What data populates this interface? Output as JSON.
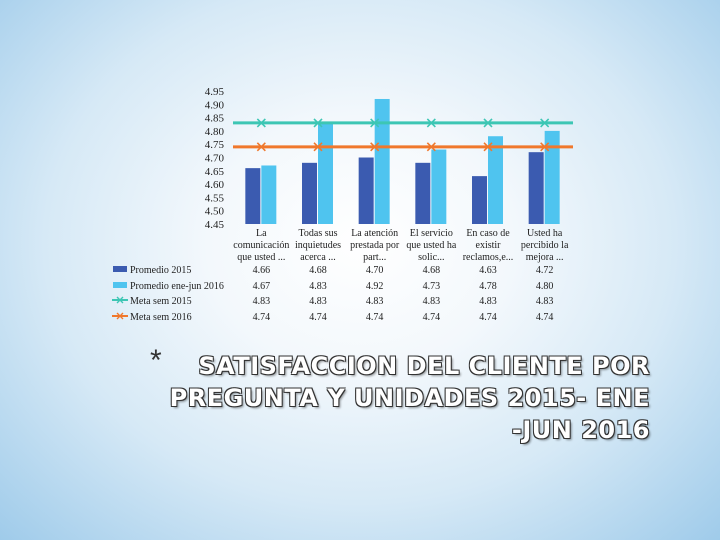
{
  "chart_data": {
    "type": "bar",
    "title": "SATISFACCION DEL CLIENTE POR PREGUNTA Y UNIDADES 2015- ENE -JUN 2016",
    "ylim": [
      4.45,
      4.95
    ],
    "yticks": [
      "4.95",
      "4.90",
      "4.85",
      "4.80",
      "4.75",
      "4.70",
      "4.65",
      "4.60",
      "4.55",
      "4.50",
      "4.45"
    ],
    "categories": [
      [
        "La",
        "comunicación",
        "que usted ..."
      ],
      [
        "Todas sus",
        "inquietudes",
        "acerca ..."
      ],
      [
        "La atención",
        "prestada por",
        "part..."
      ],
      [
        "El servicio",
        "que usted ha",
        "solic..."
      ],
      [
        "En caso de",
        "existir",
        "reclamos,e..."
      ],
      [
        "Usted ha",
        "percibido la",
        "mejora ..."
      ]
    ],
    "series": [
      {
        "name": "Promedio 2015",
        "kind": "bar",
        "color": "#3b5bb0",
        "values": [
          4.66,
          4.68,
          4.7,
          4.68,
          4.63,
          4.72
        ],
        "labels": [
          "4.66",
          "4.68",
          "4.70",
          "4.68",
          "4.63",
          "4.72"
        ]
      },
      {
        "name": "Promedio ene-jun 2016",
        "kind": "bar",
        "color": "#4fc4ef",
        "values": [
          4.67,
          4.83,
          4.92,
          4.73,
          4.78,
          4.8
        ],
        "labels": [
          "4.67",
          "4.83",
          "4.92",
          "4.73",
          "4.78",
          "4.80"
        ]
      },
      {
        "name": "Meta sem 2015",
        "kind": "line",
        "color": "#3dc6b4",
        "marker": "x",
        "values": [
          4.83,
          4.83,
          4.83,
          4.83,
          4.83,
          4.83
        ],
        "labels": [
          "4.83",
          "4.83",
          "4.83",
          "4.83",
          "4.83",
          "4.83"
        ]
      },
      {
        "name": "Meta sem 2016",
        "kind": "line",
        "color": "#f0782c",
        "marker": "x",
        "values": [
          4.74,
          4.74,
          4.74,
          4.74,
          4.74,
          4.74
        ],
        "labels": [
          "4.74",
          "4.74",
          "4.74",
          "4.74",
          "4.74",
          "4.74"
        ]
      }
    ],
    "legend": "data-table-left",
    "grid": false
  },
  "title": {
    "asterisk": "*",
    "line1": "SATISFACCION DEL CLIENTE POR",
    "line2": "PREGUNTA Y UNIDADES 2015- ENE",
    "line3": "-JUN 2016"
  }
}
